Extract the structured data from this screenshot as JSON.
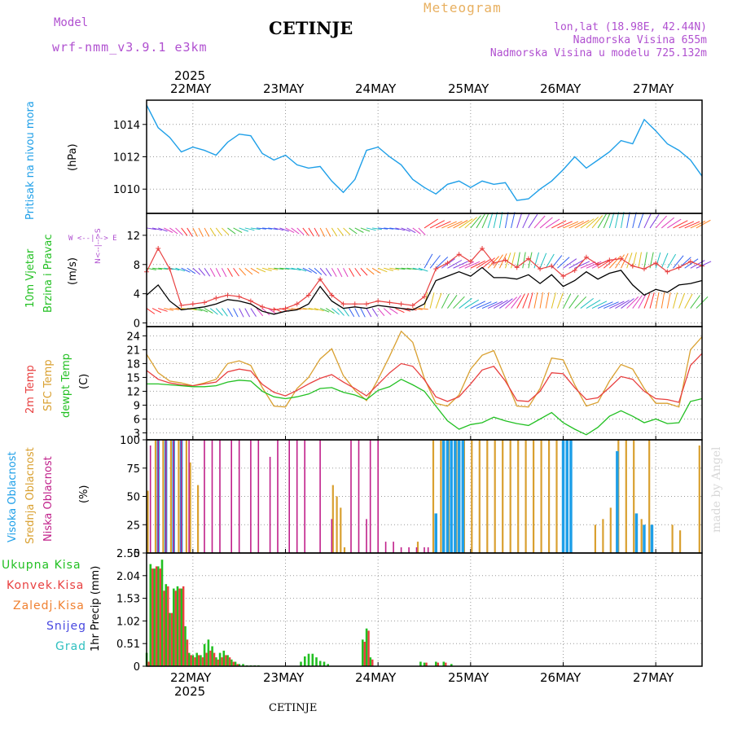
{
  "header": {
    "model_label": "Model",
    "model_name": "wrf-nmm_v3.9.1 e3km",
    "city": "CETINJE",
    "product": "Meteogram",
    "lonlat": "lon,lat (18.98E, 42.44N)",
    "elevation": "Nadmorska Visina 655m",
    "model_elevation": "Nadmorska Visina u modelu 725.132m"
  },
  "footer_city": "CETINJE",
  "watermark": "made by Angel",
  "time_axis": {
    "year": "2025",
    "days": [
      "22MAY",
      "23MAY",
      "24MAY",
      "25MAY",
      "26MAY",
      "27MAY"
    ]
  },
  "colors": {
    "pressure": "#1e9fe8",
    "wind_speed": "#000000",
    "gust": "#e84040",
    "t2m": "#e84040",
    "sfc": "#d9a030",
    "dew": "#22c022",
    "high_cloud": "#1e9fe8",
    "mid_cloud": "#d9a030",
    "low_cloud": "#c0208a",
    "total_precip": "#22c022",
    "conv_precip": "#e84040"
  },
  "panels": {
    "pressure": {
      "title": "Pritisak na nivou mora",
      "unit": "(hPa)"
    },
    "wind": {
      "title": "10m Vjetar",
      "title2": "Brzina i Pravac",
      "unit": "(m/s)",
      "compass_n": "N",
      "compass_s": "S",
      "compass_e": "E",
      "compass_w": "W",
      "arrow_left": "<--",
      "arrow_right": "-->",
      "arrow_up": "^",
      "arrow_down": "v",
      "ticks_left": "W <--|--> E",
      "ticks_vert": "N<--|-->S"
    },
    "temp": {
      "t1": "2m Temp",
      "t2": "SFC Temp",
      "t3": "dewpt Temp",
      "unit": "(C)"
    },
    "cloud": {
      "c1": "Visoka Oblacnost",
      "c2": "Srednja Oblacnost",
      "c3": "Niska Oblacnost",
      "unit": "(%)"
    },
    "precip": {
      "legend": [
        "Ukupna Kisa",
        "Konvek.Kisa",
        "Zaledj.Kisa",
        "Snijeg",
        "Grad"
      ],
      "legend_colors": [
        "#22c022",
        "#e84040",
        "#f08030",
        "#4848e0",
        "#30c0c0"
      ],
      "unit": "1hr Precip (mm)"
    }
  },
  "chart_data": [
    {
      "type": "line",
      "name": "pressure",
      "title": "Pritisak na nivou mora",
      "ylabel": "(hPa)",
      "ylim": [
        1008.5,
        1015.5
      ],
      "yticks": [
        "1010",
        "1012",
        "1014"
      ],
      "yticks_values": [
        1010,
        1012,
        1014
      ],
      "x_hours": [
        0,
        3,
        6,
        9,
        12,
        15,
        18,
        21,
        24,
        27,
        30,
        33,
        36,
        39,
        42,
        45,
        48,
        51,
        54,
        57,
        60,
        63,
        66,
        69,
        72,
        75,
        78,
        81,
        84,
        87,
        90,
        93,
        96,
        99,
        102,
        105,
        108,
        111,
        114,
        117,
        120,
        123,
        126,
        129,
        132,
        135,
        138,
        141,
        144
      ],
      "values": [
        1015.2,
        1013.8,
        1013.2,
        1012.3,
        1012.6,
        1012.4,
        1012.1,
        1012.9,
        1013.4,
        1013.3,
        1012.2,
        1011.8,
        1012.1,
        1011.5,
        1011.3,
        1011.4,
        1010.5,
        1009.8,
        1010.6,
        1012.4,
        1012.6,
        1012.0,
        1011.5,
        1010.6,
        1010.1,
        1009.7,
        1010.3,
        1010.5,
        1010.1,
        1010.5,
        1010.3,
        1010.4,
        1009.3,
        1009.4,
        1010.0,
        1010.5,
        1011.2,
        1012.0,
        1011.3,
        1011.8,
        1012.3,
        1013.0,
        1012.8,
        1014.3,
        1013.6,
        1012.8,
        1012.4,
        1011.8,
        1010.8
      ]
    },
    {
      "type": "line",
      "name": "wind",
      "title": "10m Vjetar Brzina i Pravac",
      "ylabel": "(m/s)",
      "ylim": [
        -0.5,
        15
      ],
      "yticks": [
        "0",
        "4",
        "8",
        "12"
      ],
      "yticks_values": [
        0,
        4,
        8,
        12
      ],
      "x_hours": [
        0,
        3,
        6,
        9,
        12,
        15,
        18,
        21,
        24,
        27,
        30,
        33,
        36,
        39,
        42,
        45,
        48,
        51,
        54,
        57,
        60,
        63,
        66,
        69,
        72,
        75,
        78,
        81,
        84,
        87,
        90,
        93,
        96,
        99,
        102,
        105,
        108,
        111,
        114,
        117,
        120,
        123,
        126,
        129,
        132,
        135,
        138,
        141,
        144
      ],
      "series": [
        {
          "name": "wind_speed",
          "values": [
            3.8,
            5.2,
            3.0,
            1.8,
            2.0,
            2.2,
            2.6,
            3.2,
            3.0,
            2.6,
            1.6,
            1.2,
            1.6,
            1.8,
            2.6,
            5.0,
            3.0,
            2.0,
            2.2,
            2.0,
            2.4,
            2.2,
            2.0,
            1.8,
            2.6,
            5.8,
            6.4,
            7.0,
            6.4,
            7.6,
            6.2,
            6.2,
            6.0,
            6.6,
            5.4,
            6.6,
            5.0,
            5.8,
            7.0,
            6.0,
            6.8,
            7.2,
            5.2,
            3.8,
            4.6,
            4.2,
            5.2,
            5.4,
            5.8
          ]
        },
        {
          "name": "gust",
          "values": [
            7.0,
            10.2,
            7.4,
            2.4,
            2.6,
            2.8,
            3.4,
            3.8,
            3.6,
            3.0,
            2.2,
            1.8,
            2.0,
            2.6,
            3.8,
            6.0,
            3.8,
            2.6,
            2.6,
            2.6,
            3.0,
            2.8,
            2.6,
            2.4,
            3.6,
            7.4,
            8.2,
            9.4,
            8.4,
            10.2,
            8.2,
            8.6,
            7.6,
            8.8,
            7.4,
            7.8,
            6.4,
            7.2,
            9.0,
            8.0,
            8.6,
            8.8,
            7.8,
            7.4,
            8.2,
            7.0,
            7.6,
            8.4,
            7.8
          ]
        }
      ]
    },
    {
      "type": "line",
      "name": "temperature",
      "ylabel": "(C)",
      "ylim": [
        1.5,
        26
      ],
      "yticks": [
        "3",
        "6",
        "9",
        "12",
        "15",
        "18",
        "21",
        "24"
      ],
      "yticks_values": [
        3,
        6,
        9,
        12,
        15,
        18,
        21,
        24
      ],
      "x_hours": [
        0,
        3,
        6,
        9,
        12,
        15,
        18,
        21,
        24,
        27,
        30,
        33,
        36,
        39,
        42,
        45,
        48,
        51,
        54,
        57,
        60,
        63,
        66,
        69,
        72,
        75,
        78,
        81,
        84,
        87,
        90,
        93,
        96,
        99,
        102,
        105,
        108,
        111,
        114,
        117,
        120,
        123,
        126,
        129,
        132,
        135,
        138,
        141,
        144
      ],
      "series": [
        {
          "name": "2m Temp",
          "values": [
            16.5,
            14.6,
            13.8,
            13.4,
            13.2,
            13.6,
            14.0,
            16.2,
            16.8,
            16.4,
            13.5,
            11.8,
            11.0,
            12.2,
            13.6,
            14.8,
            15.6,
            14.0,
            12.6,
            11.0,
            13.5,
            16.0,
            18.0,
            17.4,
            14.5,
            10.8,
            9.8,
            10.8,
            13.6,
            16.6,
            17.4,
            14.2,
            10.0,
            9.8,
            12.0,
            16.0,
            15.8,
            12.8,
            10.2,
            10.6,
            12.8,
            15.2,
            14.6,
            12.0,
            10.4,
            10.2,
            9.6,
            17.6,
            20.2
          ]
        },
        {
          "name": "SFC Temp",
          "values": [
            20.0,
            16.0,
            14.2,
            13.8,
            13.2,
            13.8,
            14.6,
            18.0,
            18.6,
            17.6,
            12.8,
            8.8,
            8.6,
            12.6,
            15.0,
            19.0,
            21.2,
            15.4,
            12.2,
            10.0,
            14.6,
            19.6,
            25.0,
            22.6,
            14.8,
            9.4,
            8.8,
            11.2,
            16.8,
            19.8,
            20.8,
            14.8,
            8.8,
            8.6,
            12.6,
            19.2,
            18.8,
            13.4,
            8.8,
            9.6,
            14.2,
            17.8,
            16.8,
            12.6,
            9.4,
            9.4,
            8.6,
            21.0,
            23.8
          ]
        },
        {
          "name": "dewpt Temp",
          "values": [
            13.6,
            13.6,
            13.4,
            13.2,
            13.0,
            13.0,
            13.2,
            14.0,
            14.4,
            14.2,
            12.0,
            10.8,
            10.4,
            10.8,
            11.4,
            12.6,
            12.8,
            11.8,
            11.2,
            10.2,
            12.2,
            13.0,
            14.6,
            13.4,
            12.0,
            8.8,
            5.6,
            3.8,
            4.8,
            5.2,
            6.4,
            5.6,
            5.0,
            4.6,
            6.0,
            7.4,
            5.2,
            3.8,
            2.6,
            4.2,
            6.6,
            7.8,
            6.6,
            5.2,
            6.0,
            5.0,
            5.2,
            9.8,
            10.4
          ]
        }
      ]
    },
    {
      "type": "bar",
      "name": "cloud_cover",
      "ylabel": "(%)",
      "ylim": [
        0,
        100
      ],
      "yticks": [
        "0",
        "25",
        "50",
        "75",
        "100"
      ],
      "yticks_values": [
        0,
        25,
        50,
        75,
        100
      ],
      "series": [
        {
          "name": "Visoka Oblacnost",
          "hours": [
            1,
            3,
            5,
            7,
            9,
            12,
            75,
            77,
            78,
            79,
            80,
            81,
            82,
            108,
            109,
            110,
            122,
            123,
            125,
            127,
            129,
            131
          ],
          "values": [
            0,
            100,
            100,
            100,
            100,
            0,
            35,
            100,
            100,
            100,
            100,
            100,
            100,
            100,
            100,
            100,
            90,
            0,
            0,
            35,
            25,
            25
          ]
        },
        {
          "name": "Srednja Oblacnost",
          "hours": [
            0,
            2,
            4,
            6,
            8,
            10,
            11,
            13,
            48,
            49,
            50,
            51,
            70,
            74,
            76,
            78,
            80,
            82,
            84,
            86,
            88,
            90,
            92,
            94,
            96,
            98,
            100,
            102,
            104,
            106,
            116,
            118,
            120,
            122,
            124,
            126,
            128,
            130,
            136,
            138,
            143
          ],
          "values": [
            55,
            100,
            100,
            100,
            100,
            100,
            80,
            60,
            60,
            50,
            40,
            5,
            10,
            100,
            100,
            100,
            100,
            100,
            100,
            100,
            100,
            100,
            100,
            100,
            100,
            100,
            100,
            100,
            100,
            100,
            25,
            30,
            40,
            100,
            100,
            100,
            30,
            100,
            25,
            20,
            95
          ]
        },
        {
          "name": "Niska Oblacnost",
          "hours": [
            1,
            3,
            5,
            7,
            9,
            11,
            15,
            17,
            19,
            22,
            24,
            27,
            29,
            32,
            34,
            37,
            39,
            41,
            45,
            48,
            53,
            55,
            57,
            58,
            60,
            62,
            64,
            66,
            68,
            70,
            72,
            73
          ],
          "values": [
            95,
            100,
            100,
            100,
            100,
            100,
            100,
            100,
            100,
            100,
            100,
            100,
            100,
            85,
            100,
            100,
            100,
            100,
            100,
            30,
            100,
            100,
            30,
            100,
            100,
            10,
            10,
            5,
            5,
            5,
            5,
            5
          ]
        }
      ]
    },
    {
      "type": "bar",
      "name": "precip_1hr",
      "ylabel": "1hr Precip (mm)",
      "ylim": [
        0,
        2.55
      ],
      "yticks": [
        "0",
        "0.51",
        "1.02",
        "1.53",
        "2.04",
        "2.55"
      ],
      "yticks_values": [
        0,
        0.51,
        1.02,
        1.53,
        2.04,
        2.55
      ],
      "series": [
        {
          "name": "Ukupna Kisa",
          "hours": [
            0,
            1,
            2,
            3,
            4,
            5,
            6,
            7,
            8,
            9,
            10,
            11,
            12,
            13,
            14,
            15,
            16,
            17,
            18,
            19,
            20,
            21,
            22,
            23,
            24,
            25,
            26,
            27,
            28,
            29,
            40,
            41,
            42,
            43,
            44,
            45,
            46,
            47,
            56,
            57,
            58,
            71,
            72,
            75,
            77,
            79
          ],
          "values": [
            0.3,
            2.3,
            2.2,
            2.25,
            2.4,
            1.85,
            1.2,
            1.75,
            1.8,
            1.75,
            0.9,
            0.3,
            0.25,
            0.3,
            0.25,
            0.5,
            0.6,
            0.45,
            0.2,
            0.3,
            0.35,
            0.25,
            0.15,
            0.1,
            0.05,
            0.05,
            0.02,
            0.02,
            0.02,
            0.02,
            0.1,
            0.22,
            0.28,
            0.28,
            0.2,
            0.12,
            0.1,
            0.05,
            0.6,
            0.85,
            0.2,
            0.1,
            0.08,
            0.1,
            0.1,
            0.05
          ]
        },
        {
          "name": "Konvek.Kisa",
          "hours": [
            0,
            1,
            2,
            3,
            4,
            5,
            6,
            7,
            8,
            9,
            10,
            11,
            12,
            13,
            14,
            15,
            16,
            17,
            18,
            19,
            20,
            21,
            22,
            23,
            56,
            57,
            58,
            72,
            75,
            77
          ],
          "values": [
            0.1,
            2.2,
            2.25,
            2.2,
            1.7,
            1.8,
            1.2,
            1.7,
            1.75,
            1.8,
            0.6,
            0.25,
            0.2,
            0.25,
            0.2,
            0.3,
            0.35,
            0.3,
            0.15,
            0.2,
            0.25,
            0.2,
            0.1,
            0.05,
            0.55,
            0.8,
            0.15,
            0.08,
            0.08,
            0.08
          ]
        }
      ]
    }
  ]
}
